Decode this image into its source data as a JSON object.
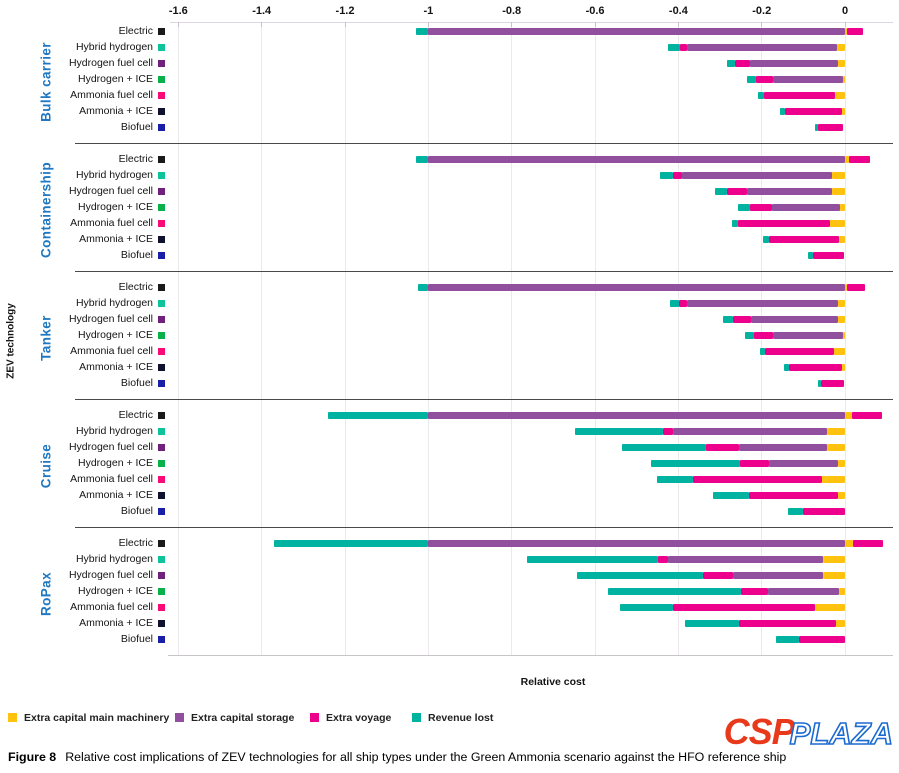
{
  "figure": {
    "caption_label": "Figure 8",
    "caption_text": "Relative cost implications of ZEV technologies for all ship types under the Green Ammonia scenario against the HFO reference ship"
  },
  "watermark": {
    "csp": "CSP",
    "plaza": "PLAZA"
  },
  "styles": {
    "group_label_color": "#1F78C1",
    "logo_red": "#E8391B",
    "logo_blue": "#1A6AD1"
  },
  "chart_data": {
    "type": "bar",
    "orientation": "horizontal",
    "stacked": true,
    "title": "",
    "xlabel": "Relative cost",
    "ylabel": "ZEV technology",
    "xlim": [
      -1.62,
      0.115
    ],
    "grid": true,
    "legend_position": "bottom",
    "xticks": [
      {
        "v": -1.6,
        "label": "-1.6"
      },
      {
        "v": -1.4,
        "label": "-1.4"
      },
      {
        "v": -1.2,
        "label": "-1.2"
      },
      {
        "v": -1.0,
        "label": "-1"
      },
      {
        "v": -0.8,
        "label": "-0.8"
      },
      {
        "v": -0.6,
        "label": "-0.6"
      },
      {
        "v": -0.4,
        "label": "-0.4"
      },
      {
        "v": -0.2,
        "label": "-0.2"
      },
      {
        "v": 0.0,
        "label": "0"
      }
    ],
    "legend": [
      {
        "key": "m",
        "label": "Extra capital main machinery",
        "color": "#FFC20E"
      },
      {
        "key": "s",
        "label": "Extra capital storage",
        "color": "#90509E"
      },
      {
        "key": "v",
        "label": "Extra voyage",
        "color": "#EC008C"
      },
      {
        "key": "r",
        "label": "Revenue lost",
        "color": "#00B2A0"
      }
    ],
    "technologies": [
      {
        "label": "Electric",
        "marker": "#1A1A1A"
      },
      {
        "label": "Hybrid hydrogen",
        "marker": "#0CC497"
      },
      {
        "label": "Hydrogen fuel cell",
        "marker": "#71207E"
      },
      {
        "label": "Hydrogen + ICE",
        "marker": "#09B14C"
      },
      {
        "label": "Ammonia fuel cell",
        "marker": "#FB0A78"
      },
      {
        "label": "Ammonia + ICE",
        "marker": "#101031"
      },
      {
        "label": "Biofuel",
        "marker": "#1A1FA8"
      }
    ],
    "groups": [
      {
        "label": "Bulk carrier",
        "rows": [
          [
            [
              "r",
              -1.03,
              -1.0
            ],
            [
              "s",
              -1.0,
              0
            ],
            [
              "m",
              0,
              0.005
            ],
            [
              "v",
              0.005,
              0.042
            ]
          ],
          [
            [
              "r",
              -0.424,
              -0.396
            ],
            [
              "v",
              -0.396,
              -0.38
            ],
            [
              "s",
              -0.38,
              -0.02
            ],
            [
              "m",
              -0.02,
              0
            ]
          ],
          [
            [
              "r",
              -0.284,
              -0.264
            ],
            [
              "v",
              -0.264,
              -0.228
            ],
            [
              "s",
              -0.228,
              -0.018
            ],
            [
              "m",
              -0.018,
              0
            ]
          ],
          [
            [
              "r",
              -0.236,
              -0.214
            ],
            [
              "v",
              -0.214,
              -0.172
            ],
            [
              "s",
              -0.172,
              -0.005
            ],
            [
              "m",
              -0.005,
              0
            ]
          ],
          [
            [
              "r",
              -0.208,
              -0.194
            ],
            [
              "v",
              -0.194,
              -0.024
            ],
            [
              "m",
              -0.024,
              0
            ]
          ],
          [
            [
              "r",
              -0.156,
              -0.144
            ],
            [
              "v",
              -0.144,
              -0.008
            ],
            [
              "m",
              -0.008,
              0
            ]
          ],
          [
            [
              "r",
              -0.072,
              -0.064
            ],
            [
              "v",
              -0.064,
              -0.004
            ]
          ]
        ]
      },
      {
        "label": "Containership",
        "rows": [
          [
            [
              "r",
              -1.03,
              -1.0
            ],
            [
              "s",
              -1.0,
              0
            ],
            [
              "m",
              0,
              0.01
            ],
            [
              "v",
              0.01,
              0.06
            ]
          ],
          [
            [
              "r",
              -0.444,
              -0.412
            ],
            [
              "v",
              -0.412,
              -0.392
            ],
            [
              "s",
              -0.392,
              -0.032
            ],
            [
              "m",
              -0.032,
              0
            ]
          ],
          [
            [
              "r",
              -0.312,
              -0.284
            ],
            [
              "v",
              -0.284,
              -0.236
            ],
            [
              "s",
              -0.236,
              -0.032
            ],
            [
              "m",
              -0.032,
              0
            ]
          ],
          [
            [
              "r",
              -0.256,
              -0.228
            ],
            [
              "v",
              -0.228,
              -0.176
            ],
            [
              "s",
              -0.176,
              -0.012
            ],
            [
              "m",
              -0.012,
              0
            ]
          ],
          [
            [
              "r",
              -0.272,
              -0.256
            ],
            [
              "v",
              -0.256,
              -0.036
            ],
            [
              "m",
              -0.036,
              0
            ]
          ],
          [
            [
              "r",
              -0.198,
              -0.182
            ],
            [
              "v",
              -0.182,
              -0.014
            ],
            [
              "m",
              -0.014,
              0
            ]
          ],
          [
            [
              "r",
              -0.088,
              -0.078
            ],
            [
              "v",
              -0.078,
              -0.002
            ]
          ]
        ]
      },
      {
        "label": "Tanker",
        "rows": [
          [
            [
              "r",
              -1.025,
              -1.0
            ],
            [
              "s",
              -1.0,
              0
            ],
            [
              "m",
              0,
              0.005
            ],
            [
              "v",
              0.005,
              0.048
            ]
          ],
          [
            [
              "r",
              -0.42,
              -0.398
            ],
            [
              "v",
              -0.398,
              -0.38
            ],
            [
              "s",
              -0.38,
              -0.016
            ],
            [
              "m",
              -0.016,
              0
            ]
          ],
          [
            [
              "r",
              -0.292,
              -0.27
            ],
            [
              "v",
              -0.27,
              -0.226
            ],
            [
              "s",
              -0.226,
              -0.016
            ],
            [
              "m",
              -0.016,
              0
            ]
          ],
          [
            [
              "r",
              -0.24,
              -0.218
            ],
            [
              "v",
              -0.218,
              -0.172
            ],
            [
              "s",
              -0.172,
              -0.006
            ],
            [
              "m",
              -0.006,
              0
            ]
          ],
          [
            [
              "r",
              -0.204,
              -0.192
            ],
            [
              "v",
              -0.192,
              -0.026
            ],
            [
              "m",
              -0.026,
              0
            ]
          ],
          [
            [
              "r",
              -0.146,
              -0.134
            ],
            [
              "v",
              -0.134,
              -0.008
            ],
            [
              "m",
              -0.008,
              0
            ]
          ],
          [
            [
              "r",
              -0.066,
              -0.058
            ],
            [
              "v",
              -0.058,
              -0.002
            ]
          ]
        ]
      },
      {
        "label": "Cruise",
        "rows": [
          [
            [
              "r",
              -1.24,
              -1.0
            ],
            [
              "s",
              -1.0,
              0
            ],
            [
              "m",
              0,
              0.016
            ],
            [
              "v",
              0.016,
              0.088
            ]
          ],
          [
            [
              "r",
              -0.648,
              -0.438
            ],
            [
              "v",
              -0.438,
              -0.412
            ],
            [
              "s",
              -0.412,
              -0.044
            ],
            [
              "m",
              -0.044,
              0
            ]
          ],
          [
            [
              "r",
              -0.536,
              -0.334
            ],
            [
              "v",
              -0.334,
              -0.254
            ],
            [
              "s",
              -0.254,
              -0.044
            ],
            [
              "m",
              -0.044,
              0
            ]
          ],
          [
            [
              "r",
              -0.466,
              -0.252
            ],
            [
              "v",
              -0.252,
              -0.182
            ],
            [
              "s",
              -0.182,
              -0.016
            ],
            [
              "m",
              -0.016,
              0
            ]
          ],
          [
            [
              "r",
              -0.452,
              -0.364
            ],
            [
              "v",
              -0.364,
              -0.056
            ],
            [
              "m",
              -0.056,
              0
            ]
          ],
          [
            [
              "r",
              -0.316,
              -0.23
            ],
            [
              "v",
              -0.23,
              -0.016
            ],
            [
              "m",
              -0.016,
              0
            ]
          ],
          [
            [
              "r",
              -0.136,
              -0.102
            ],
            [
              "v",
              -0.102,
              0
            ]
          ]
        ]
      },
      {
        "label": "RoPax",
        "rows": [
          [
            [
              "r",
              -1.37,
              -1.0
            ],
            [
              "s",
              -1.0,
              0
            ],
            [
              "m",
              0,
              0.018
            ],
            [
              "v",
              0.018,
              0.092
            ]
          ],
          [
            [
              "r",
              -0.764,
              -0.448
            ],
            [
              "v",
              -0.448,
              -0.424
            ],
            [
              "s",
              -0.424,
              -0.052
            ],
            [
              "m",
              -0.052,
              0
            ]
          ],
          [
            [
              "r",
              -0.644,
              -0.34
            ],
            [
              "v",
              -0.34,
              -0.268
            ],
            [
              "s",
              -0.268,
              -0.052
            ],
            [
              "m",
              -0.052,
              0
            ]
          ],
          [
            [
              "r",
              -0.568,
              -0.25
            ],
            [
              "v",
              -0.25,
              -0.184
            ],
            [
              "s",
              -0.184,
              -0.014
            ],
            [
              "m",
              -0.014,
              0
            ]
          ],
          [
            [
              "r",
              -0.54,
              -0.412
            ],
            [
              "v",
              -0.412,
              -0.072
            ],
            [
              "m",
              -0.072,
              0
            ]
          ],
          [
            [
              "r",
              -0.384,
              -0.254
            ],
            [
              "v",
              -0.254,
              -0.022
            ],
            [
              "m",
              -0.022,
              0
            ]
          ],
          [
            [
              "r",
              -0.166,
              -0.11
            ],
            [
              "v",
              -0.11,
              0
            ]
          ]
        ]
      }
    ]
  }
}
